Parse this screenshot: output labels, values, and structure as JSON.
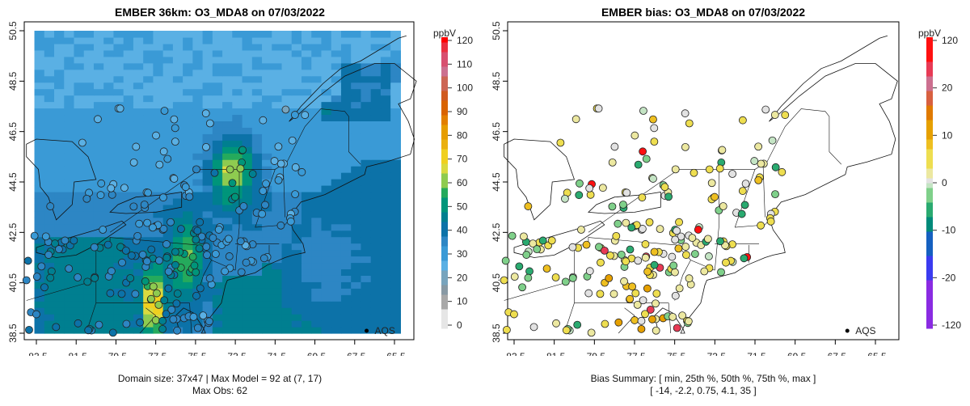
{
  "left_panel": {
    "title": "EMBER 36km: O3_MDA8 on 07/03/2022",
    "legend_unit": "ppbV",
    "legend_ticks": [
      "0",
      "10",
      "20",
      "30",
      "40",
      "50",
      "60",
      "70",
      "80",
      "90",
      "100",
      "110",
      "120"
    ],
    "footer_line1": "Domain size: 37x47 | Max Model = 92 at (7, 17)",
    "footer_line2": "Max Obs: 62",
    "aqs_label": "AQS"
  },
  "right_panel": {
    "title": "EMBER bias: O3_MDA8 on 07/03/2022",
    "legend_unit": "ppbV",
    "legend_ticks": [
      "120",
      "20",
      "10",
      "0",
      "-10",
      "-20",
      "-120"
    ],
    "footer_line1": "Bias Summary: [ min, 25th %, 50th %, 75th %, max ]",
    "footer_line2": "[ -14,  -2.2,  0.75,  4.1,  35 ]",
    "aqs_label": "AQS"
  },
  "chart_data": [
    {
      "type": "heatmap",
      "title": "EMBER 36km: O3_MDA8 on 07/03/2022",
      "xlabel": "",
      "ylabel": "",
      "x_ticks": [
        "-83.5",
        "-81.5",
        "-79.5",
        "-77.5",
        "-75.5",
        "-73.5",
        "-71.5",
        "-69.5",
        "-67.5",
        "-65.5"
      ],
      "y_ticks": [
        "38.5",
        "40.5",
        "42.5",
        "44.5",
        "46.5",
        "48.5",
        "50.5"
      ],
      "xlim": [
        -84,
        -65
      ],
      "ylim": [
        38.5,
        50.5
      ],
      "colorbar_range": [
        0,
        120
      ],
      "max_model": 92,
      "max_obs": 62
    },
    {
      "type": "scatter",
      "title": "EMBER bias: O3_MDA8 on 07/03/2022",
      "x_ticks": [
        "-83.5",
        "-81.5",
        "-79.5",
        "-77.5",
        "-75.5",
        "-73.5",
        "-71.5",
        "-69.5",
        "-67.5",
        "-65.5"
      ],
      "y_ticks": [
        "38.5",
        "40.5",
        "42.5",
        "44.5",
        "46.5",
        "48.5",
        "50.5"
      ],
      "xlim": [
        -84,
        -65
      ],
      "ylim": [
        38.5,
        50.5
      ],
      "bias_summary": {
        "min": -14,
        "p25": -2.2,
        "median": 0.75,
        "p75": 4.1,
        "max": 35
      }
    }
  ]
}
